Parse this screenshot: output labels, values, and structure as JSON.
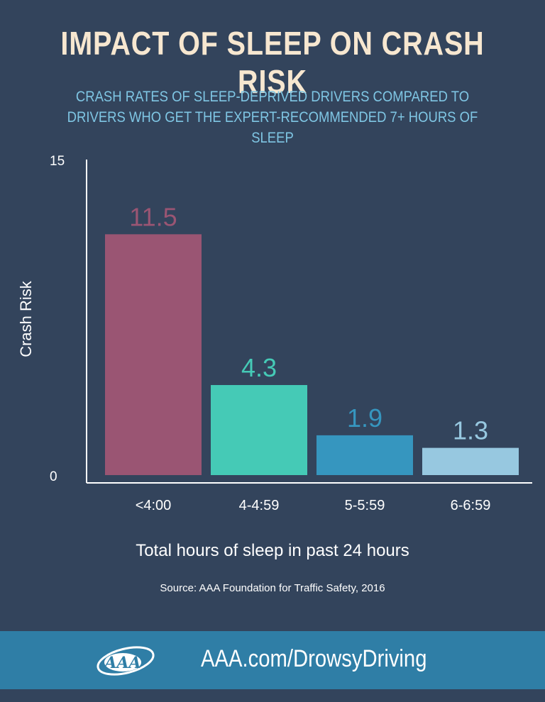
{
  "header": {
    "title": "IMPACT OF SLEEP ON CRASH RISK",
    "subtitle": "CRASH RATES OF SLEEP-DEPRIVED DRIVERS COMPARED TO DRIVERS WHO GET THE EXPERT-RECOMMENDED 7+ HOURS OF SLEEP"
  },
  "chart_data": {
    "type": "bar",
    "categories": [
      "<4:00",
      "4-4:59",
      "5-5:59",
      "6-6:59"
    ],
    "values": [
      11.5,
      4.3,
      1.9,
      1.3
    ],
    "data_labels": [
      "11.5",
      "4.3",
      "1.9",
      "1.3"
    ],
    "ylim": [
      0,
      15
    ],
    "yticks": [
      "0",
      "15"
    ],
    "ylabel": "Crash Risk",
    "xlabel": "Total hours of sleep in past 24 hours",
    "source": "Source: AAA Foundation for Traffic Safety, 2016",
    "grid": false,
    "legend": "none",
    "colors": [
      "#9a5573",
      "#45cab6",
      "#3696bf",
      "#97c8e0"
    ]
  },
  "footer": {
    "logo_text": "AAA",
    "link": "AAA.com/DrowsyDriving"
  },
  "theme": {
    "background": "#33445c",
    "title_color": "#f7e7d0",
    "subtitle_color": "#7fc6e4",
    "footer_color": "#2f7ea6"
  }
}
